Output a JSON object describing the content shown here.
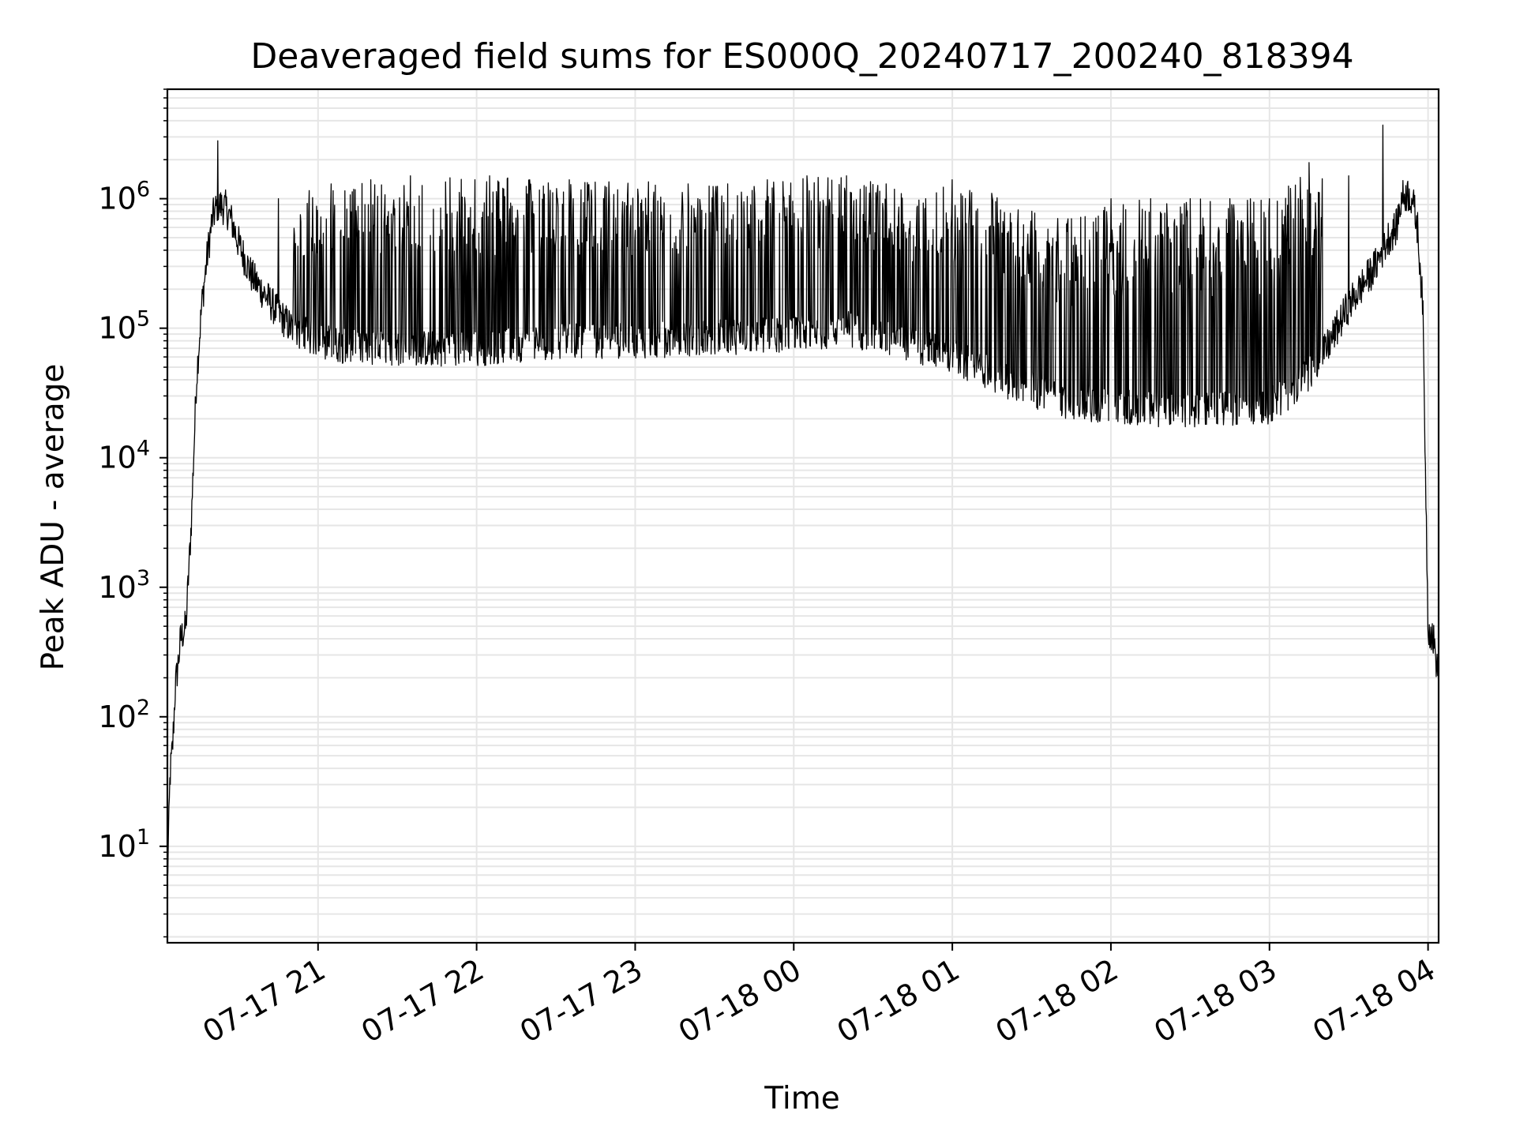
{
  "chart_data": {
    "type": "line",
    "title": "Deaveraged field sums for ES000Q_20240717_200240_818394",
    "xlabel": "Time",
    "ylabel": "Peak ADU - average",
    "y_scale": "log",
    "ylim": [
      1.8,
      7000000
    ],
    "xlim": [
      "2024-07-17 20:03",
      "2024-07-18 04:04"
    ],
    "grid": true,
    "x_tick_labels": [
      "07-17 21",
      "07-17 22",
      "07-17 23",
      "07-18 00",
      "07-18 01",
      "07-18 02",
      "07-18 03",
      "07-18 04"
    ],
    "x_ticks": [
      "2024-07-17 21:00",
      "2024-07-17 22:00",
      "2024-07-17 23:00",
      "2024-07-18 00:00",
      "2024-07-18 01:00",
      "2024-07-18 02:00",
      "2024-07-18 03:00",
      "2024-07-18 04:00"
    ],
    "y_tick_labels": [
      {
        "base": "10",
        "exp": "1"
      },
      {
        "base": "10",
        "exp": "2"
      },
      {
        "base": "10",
        "exp": "3"
      },
      {
        "base": "10",
        "exp": "4"
      },
      {
        "base": "10",
        "exp": "5"
      },
      {
        "base": "10",
        "exp": "6"
      }
    ],
    "y_ticks": [
      10,
      100,
      1000,
      10000,
      100000,
      1000000
    ],
    "line_color": "#000000",
    "grid_color": "#e6e6e6",
    "series": [
      {
        "x": [
          "2024-07-17 20:03",
          "2024-07-17 20:04",
          "2024-07-17 20:05",
          "2024-07-17 20:06",
          "2024-07-17 20:07",
          "2024-07-17 20:08",
          "2024-07-17 20:10",
          "2024-07-17 20:12",
          "2024-07-17 20:14",
          "2024-07-17 20:16",
          "2024-07-17 20:18",
          "2024-07-17 20:20",
          "2024-07-17 20:22",
          "2024-07-17 20:25",
          "2024-07-17 20:27",
          "2024-07-17 20:30",
          "2024-07-17 20:35",
          "2024-07-17 20:40",
          "2024-07-17 20:45",
          "2024-07-17 20:50",
          "2024-07-17 20:55",
          "2024-07-17 21:00",
          "2024-07-17 21:15",
          "2024-07-17 21:30",
          "2024-07-17 22:00",
          "2024-07-17 22:30",
          "2024-07-17 23:00",
          "2024-07-17 23:30",
          "2024-07-18 00:00",
          "2024-07-18 00:20",
          "2024-07-18 00:40",
          "2024-07-18 01:00",
          "2024-07-18 01:20",
          "2024-07-18 01:40",
          "2024-07-18 02:00",
          "2024-07-18 02:30",
          "2024-07-18 03:00",
          "2024-07-18 03:10",
          "2024-07-18 03:20",
          "2024-07-18 03:30",
          "2024-07-18 03:40",
          "2024-07-18 03:45",
          "2024-07-18 03:48",
          "2024-07-18 03:50",
          "2024-07-18 03:52",
          "2024-07-18 03:54",
          "2024-07-18 03:56",
          "2024-07-18 03:58",
          "2024-07-18 04:00",
          "2024-07-18 04:02",
          "2024-07-18 04:04"
        ],
        "y": [
          5,
          35,
          60,
          170,
          250,
          400,
          500,
          3000,
          40000,
          150000,
          350000,
          700000,
          900000,
          850000,
          700000,
          450000,
          250000,
          180000,
          130000,
          100000,
          90000,
          80000,
          70000,
          70000,
          70000,
          80000,
          80000,
          85000,
          90000,
          100000,
          80000,
          60000,
          40000,
          28000,
          25000,
          23000,
          25000,
          35000,
          60000,
          150000,
          300000,
          500000,
          600000,
          1000000,
          1100000,
          1000000,
          600000,
          150000,
          500,
          400,
          200
        ]
      },
      {
        "x": [
          "2024-07-17 20:22",
          "2024-07-17 20:45",
          "2024-07-17 21:05",
          "2024-07-17 21:20",
          "2024-07-17 21:35",
          "2024-07-17 21:50",
          "2024-07-17 22:05",
          "2024-07-17 22:20",
          "2024-07-17 22:35",
          "2024-07-17 22:50",
          "2024-07-17 23:05",
          "2024-07-17 23:20",
          "2024-07-17 23:35",
          "2024-07-17 23:50",
          "2024-07-18 00:05",
          "2024-07-18 00:20",
          "2024-07-18 00:35",
          "2024-07-18 00:50",
          "2024-07-18 01:00",
          "2024-07-18 01:15",
          "2024-07-18 01:30",
          "2024-07-18 01:45",
          "2024-07-18 02:00",
          "2024-07-18 02:15",
          "2024-07-18 02:30",
          "2024-07-18 02:45",
          "2024-07-18 03:00",
          "2024-07-18 03:15",
          "2024-07-18 03:30",
          "2024-07-18 03:43"
        ],
        "y": [
          2800000,
          1000000,
          1300000,
          1400000,
          1500000,
          1450000,
          1500000,
          1400000,
          1400000,
          1350000,
          1350000,
          1300000,
          1300000,
          1400000,
          1500000,
          1500000,
          1300000,
          1000000,
          1400000,
          1100000,
          800000,
          700000,
          1000000,
          1000000,
          1000000,
          1000000,
          1000000,
          1900000,
          1500000,
          3700000
        ]
      }
    ]
  }
}
